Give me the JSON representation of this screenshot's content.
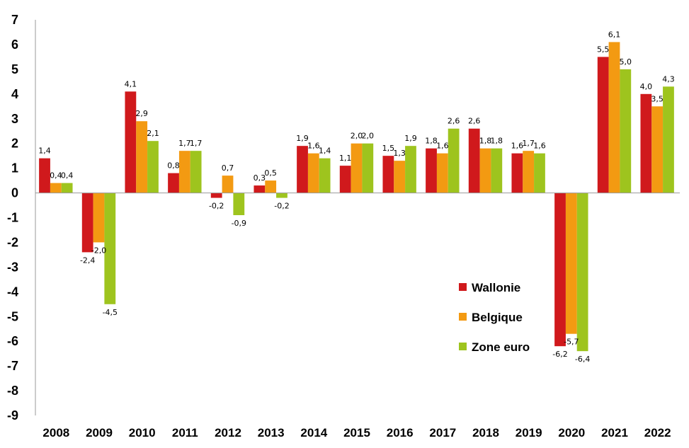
{
  "chart_data": {
    "type": "bar",
    "title": "",
    "xlabel": "",
    "ylabel": "",
    "ylim": [
      -9,
      7
    ],
    "yticks": [
      7,
      6,
      5,
      4,
      3,
      2,
      1,
      0,
      -1,
      -2,
      -3,
      -4,
      -5,
      -6,
      -7,
      -8,
      -9
    ],
    "grid": false,
    "legend_position": "right",
    "categories": [
      "2008",
      "2009",
      "2010",
      "2011",
      "2012",
      "2013",
      "2014",
      "2015",
      "2016",
      "2017",
      "2018",
      "2019",
      "2020",
      "2021",
      "2022"
    ],
    "series": [
      {
        "name": "Wallonie",
        "color": "#d0191c",
        "values": [
          1.4,
          -2.4,
          4.1,
          0.8,
          -0.2,
          0.3,
          1.9,
          1.1,
          1.5,
          1.8,
          2.6,
          1.6,
          -6.2,
          5.5,
          4.0
        ],
        "labels": [
          "1,4",
          "-2,4",
          "4,1",
          "0,8",
          "-0,2",
          "0,3",
          "1,9",
          "1,1",
          "1,5",
          "1,8",
          "2,6",
          "1,6",
          "-6,2",
          "5,5",
          "4,0"
        ]
      },
      {
        "name": "Belgique",
        "color": "#f39a12",
        "values": [
          0.4,
          -2.0,
          2.9,
          1.7,
          0.7,
          0.5,
          1.6,
          2.0,
          1.3,
          1.6,
          1.8,
          1.7,
          -5.7,
          6.1,
          3.5
        ],
        "labels": [
          "0,4",
          "-2,0",
          "2,9",
          "1,7",
          "0,7",
          "0,5",
          "1,6",
          "2,0",
          "1,3",
          "1,6",
          "1,8",
          "1,7",
          "-5,7",
          "6,1",
          "3,5"
        ]
      },
      {
        "name": "Zone euro",
        "color": "#9ec41e",
        "values": [
          0.4,
          -4.5,
          2.1,
          1.7,
          -0.9,
          -0.2,
          1.4,
          2.0,
          1.9,
          2.6,
          1.8,
          1.6,
          -6.4,
          5.0,
          4.3
        ],
        "labels": [
          "0,4",
          "-4,5",
          "2,1",
          "1,7",
          "-0,9",
          "-0,2",
          "1,4",
          "2,0",
          "1,9",
          "2,6",
          "1,8",
          "1,6",
          "-6,4",
          "5,0",
          "4,3"
        ]
      }
    ]
  }
}
